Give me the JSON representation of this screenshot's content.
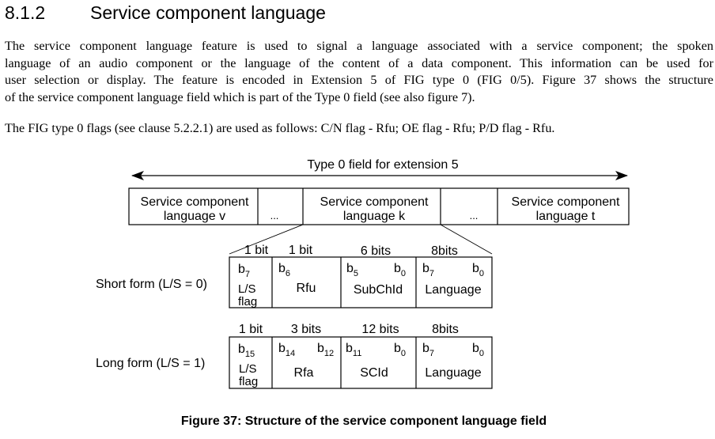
{
  "section": {
    "number": "8.1.2",
    "title": "Service component language"
  },
  "paragraphs": {
    "p1_lines": [
      "The service component language feature is used to signal a language associated with a service component; the spoken",
      "language of an audio component or the language of the content of a data component. This information can be used for",
      "user selection or display. The feature is encoded in Extension 5 of FIG type 0 (FIG 0/5). Figure 37 shows the structure",
      "of the service component language field which is part of the Type 0 field (see also figure 7)."
    ],
    "p2": "The FIG type 0 flags (see clause 5.2.2.1) are used as follows: C/N flag - Rfu; OE flag - Rfu; P/D flag - Rfu."
  },
  "figure": {
    "field_title": "Type 0 field for extension 5",
    "top_row": {
      "cell_v": [
        "Service component",
        "language v"
      ],
      "ellipsis_1": "...",
      "cell_k": [
        "Service component",
        "language k"
      ],
      "ellipsis_2": "...",
      "cell_t": [
        "Service component",
        "language t"
      ]
    },
    "short_form": {
      "label": "Short form (L/S = 0)",
      "widths": [
        "1 bit",
        "1 bit",
        "6 bits",
        "8bits"
      ],
      "bits": {
        "ls_b": "b",
        "ls_sub": "7",
        "rfu_b": "b",
        "rfu_sub": "6",
        "sub_hi_b": "b",
        "sub_hi_sub": "5",
        "sub_lo_b": "b",
        "sub_lo_sub": "0",
        "lang_hi_b": "b",
        "lang_hi_sub": "7",
        "lang_lo_b": "b",
        "lang_lo_sub": "0"
      },
      "names": [
        "L/S",
        "flag",
        "Rfu",
        "SubChId",
        "Language"
      ]
    },
    "long_form": {
      "label": "Long form (L/S = 1)",
      "widths": [
        "1 bit",
        "3 bits",
        "12 bits",
        "8bits"
      ],
      "bits": {
        "ls_b": "b",
        "ls_sub": "15",
        "rfa_hi_b": "b",
        "rfa_hi_sub": "14",
        "rfa_lo_b": "b",
        "rfa_lo_sub": "12",
        "scid_hi_b": "b",
        "scid_hi_sub": "11",
        "scid_lo_b": "b",
        "scid_lo_sub": "0",
        "lang_hi_b": "b",
        "lang_hi_sub": "7",
        "lang_lo_b": "b",
        "lang_lo_sub": "0"
      },
      "names": [
        "L/S",
        "flag",
        "Rfa",
        "SCId",
        "Language"
      ]
    },
    "caption": "Figure 37: Structure of the service component language field"
  }
}
